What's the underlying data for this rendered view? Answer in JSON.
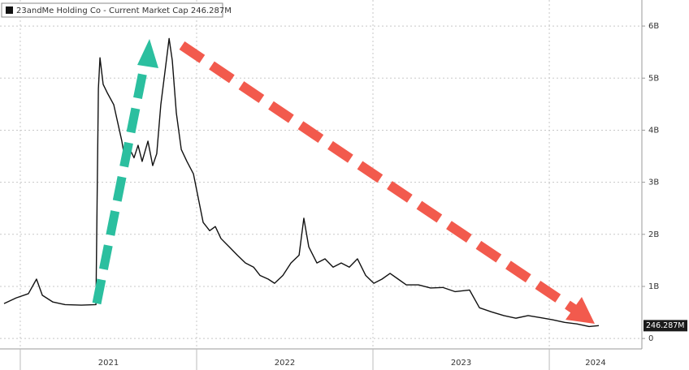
{
  "chart_data": {
    "type": "line",
    "x": [
      2020.908,
      2020.977,
      2021.046,
      2021.092,
      2021.125,
      2021.185,
      2021.254,
      2021.346,
      2021.429,
      2021.443,
      2021.452,
      2021.47,
      2021.493,
      2021.53,
      2021.576,
      2021.599,
      2021.622,
      2021.645,
      2021.668,
      2021.691,
      2021.724,
      2021.751,
      2021.774,
      2021.797,
      2021.82,
      2021.844,
      2021.862,
      2021.885,
      2021.913,
      2021.945,
      2021.982,
      2022.005,
      2022.037,
      2022.074,
      2022.106,
      2022.138,
      2022.185,
      2022.231,
      2022.277,
      2022.323,
      2022.36,
      2022.406,
      2022.442,
      2022.489,
      2022.535,
      2022.581,
      2022.608,
      2022.636,
      2022.682,
      2022.728,
      2022.774,
      2022.82,
      2022.866,
      2022.912,
      2022.959,
      2023.005,
      2023.051,
      2023.097,
      2023.143,
      2023.189,
      2023.258,
      2023.327,
      2023.396,
      2023.465,
      2023.548,
      2023.604,
      2023.673,
      2023.742,
      2023.811,
      2023.88,
      2023.949,
      2024.018,
      2024.087,
      2024.156,
      2024.226,
      2024.281
    ],
    "series": [
      {
        "name": "23andMe Holding Co - Current Market Cap 246.287M",
        "color": "#111111",
        "values": [
          0.67,
          0.78,
          0.86,
          1.14,
          0.83,
          0.7,
          0.65,
          0.64,
          0.65,
          4.8,
          5.39,
          4.88,
          4.72,
          4.49,
          3.79,
          3.32,
          3.63,
          3.47,
          3.71,
          3.4,
          3.79,
          3.32,
          3.55,
          4.49,
          5.11,
          5.76,
          5.34,
          4.33,
          3.63,
          3.4,
          3.16,
          2.77,
          2.23,
          2.07,
          2.15,
          1.92,
          1.76,
          1.6,
          1.45,
          1.37,
          1.21,
          1.14,
          1.06,
          1.21,
          1.45,
          1.6,
          2.31,
          1.76,
          1.45,
          1.53,
          1.37,
          1.45,
          1.37,
          1.53,
          1.21,
          1.06,
          1.14,
          1.25,
          1.14,
          1.03,
          1.03,
          0.97,
          0.98,
          0.9,
          0.93,
          0.59,
          0.51,
          0.44,
          0.39,
          0.44,
          0.4,
          0.36,
          0.31,
          0.28,
          0.23,
          0.246287
        ],
        "value_labels": [
          null,
          null,
          null,
          null,
          null,
          null,
          null,
          null,
          null,
          null,
          null,
          null,
          null,
          null,
          null,
          null,
          null,
          null,
          null,
          null,
          null,
          null,
          null,
          null,
          null,
          null,
          null,
          null,
          null,
          null,
          null,
          null,
          null,
          null,
          null,
          null,
          null,
          null,
          null,
          null,
          null,
          null,
          null,
          null,
          null,
          null,
          null,
          null,
          null,
          null,
          null,
          null,
          null,
          null,
          null,
          null,
          null,
          null,
          null,
          null,
          null,
          null,
          null,
          null,
          null,
          null,
          null,
          null,
          null,
          null,
          null,
          null,
          null,
          null,
          null,
          "246.287M"
        ]
      }
    ],
    "xlim": [
      2020.885,
      2024.525
    ],
    "xticks": [
      2021,
      2022,
      2023,
      2024
    ],
    "ylim": [
      -0.2,
      6.5
    ],
    "yticks": [
      0,
      {
        "value": 1,
        "label": "1B"
      },
      {
        "value": 2,
        "label": "2B"
      },
      {
        "value": 3,
        "label": "3B"
      },
      {
        "value": 4,
        "label": "4B"
      },
      {
        "value": 5,
        "label": "5B"
      },
      {
        "value": 6,
        "label": "6B"
      }
    ],
    "grid": true
  }
}
